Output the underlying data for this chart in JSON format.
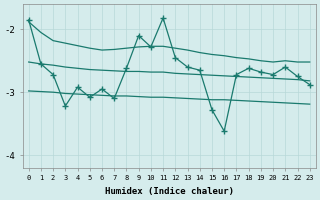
{
  "xlabel": "Humidex (Indice chaleur)",
  "ylabel": "",
  "background_color": "#d5ecec",
  "grid_color": "#b8d8d8",
  "line_color": "#1a7a6e",
  "x_data": [
    0,
    1,
    2,
    3,
    4,
    5,
    6,
    7,
    8,
    9,
    10,
    11,
    12,
    13,
    14,
    15,
    16,
    17,
    18,
    19,
    20,
    21,
    22,
    23
  ],
  "main_y": [
    -1.85,
    -2.55,
    -2.72,
    -3.22,
    -2.92,
    -3.08,
    -2.95,
    -3.1,
    -2.62,
    -2.1,
    -2.28,
    -1.82,
    -2.45,
    -2.6,
    -2.65,
    -3.28,
    -3.62,
    -2.72,
    -2.62,
    -2.68,
    -2.72,
    -2.6,
    -2.75,
    -2.88
  ],
  "upper_band": [
    -1.88,
    -2.05,
    -2.18,
    -2.22,
    -2.26,
    -2.3,
    -2.33,
    -2.32,
    -2.3,
    -2.28,
    -2.27,
    -2.27,
    -2.3,
    -2.33,
    -2.37,
    -2.4,
    -2.42,
    -2.45,
    -2.47,
    -2.5,
    -2.52,
    -2.5,
    -2.52,
    -2.52
  ],
  "mid_band": [
    -2.52,
    -2.55,
    -2.57,
    -2.6,
    -2.62,
    -2.64,
    -2.65,
    -2.66,
    -2.67,
    -2.67,
    -2.68,
    -2.68,
    -2.7,
    -2.71,
    -2.72,
    -2.73,
    -2.74,
    -2.75,
    -2.76,
    -2.77,
    -2.78,
    -2.79,
    -2.8,
    -2.82
  ],
  "lower_band": [
    -2.98,
    -2.99,
    -3.0,
    -3.02,
    -3.03,
    -3.04,
    -3.05,
    -3.06,
    -3.06,
    -3.07,
    -3.08,
    -3.08,
    -3.09,
    -3.1,
    -3.11,
    -3.12,
    -3.12,
    -3.13,
    -3.14,
    -3.15,
    -3.16,
    -3.17,
    -3.18,
    -3.19
  ],
  "ylim": [
    -4.2,
    -1.6
  ],
  "xlim": [
    -0.5,
    23.5
  ],
  "yticks": [
    -4,
    -3,
    -2
  ],
  "xticks": [
    0,
    1,
    2,
    3,
    4,
    5,
    6,
    7,
    8,
    9,
    10,
    11,
    12,
    13,
    14,
    15,
    16,
    17,
    18,
    19,
    20,
    21,
    22,
    23
  ]
}
